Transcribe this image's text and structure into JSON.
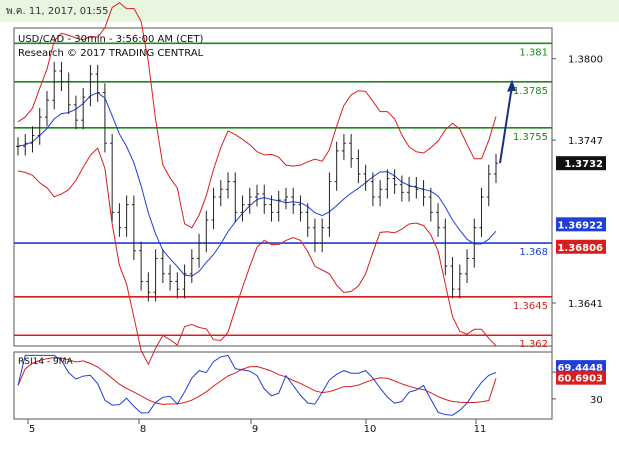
{
  "header": {
    "timestamp": "พ.ค. 11, 2017, 01:55"
  },
  "chart_data": {
    "type": "candlestick",
    "title": "USD/CAD - 30min - 3:56:00 AM (CET)",
    "subtitle": "Research © 2017 TRADING CENTRAL",
    "price_range": [
      1.3613,
      1.382
    ],
    "price_axis_ticks": [
      "1.3800",
      "1.3747",
      "1.3641"
    ],
    "x_ticks": [
      "5",
      "8",
      "9",
      "10",
      "11"
    ],
    "levels": [
      {
        "label": "1.381",
        "value": 1.381,
        "color": "#1a8a1a"
      },
      {
        "label": "1.3785",
        "value": 1.3785,
        "color": "#1a8a1a"
      },
      {
        "label": "1.3755",
        "value": 1.3755,
        "color": "#1a8a1a"
      },
      {
        "label": "1.368",
        "value": 1.368,
        "color": "#1f3fd8"
      },
      {
        "label": "1.3645",
        "value": 1.3645,
        "color": "#d81f1f"
      },
      {
        "label": "1.362",
        "value": 1.362,
        "color": "#d81f1f"
      }
    ],
    "current_price": {
      "label": "1.3732",
      "value": 1.3732
    },
    "ma_value": {
      "label": "1.36922",
      "value": 1.36922,
      "color": "#1f3fd8"
    },
    "bb_value": {
      "label": "1.36806",
      "value": 1.36806,
      "color": "#d81f1f"
    },
    "close": [
      1.3743,
      1.3745,
      1.375,
      1.3762,
      1.3773,
      1.3792,
      1.3785,
      1.377,
      1.376,
      1.3775,
      1.379,
      1.3778,
      1.3745,
      1.37,
      1.369,
      1.3705,
      1.3675,
      1.3655,
      1.3648,
      1.367,
      1.366,
      1.3655,
      1.365,
      1.366,
      1.367,
      1.368,
      1.3695,
      1.371,
      1.3715,
      1.372,
      1.37,
      1.3705,
      1.371,
      1.3712,
      1.3705,
      1.37,
      1.3708,
      1.371,
      1.3705,
      1.37,
      1.369,
      1.368,
      1.369,
      1.372,
      1.374,
      1.3745,
      1.3735,
      1.3725,
      1.372,
      1.371,
      1.3715,
      1.3722,
      1.3718,
      1.3713,
      1.3717,
      1.3715,
      1.371,
      1.37,
      1.369,
      1.3665,
      1.365,
      1.366,
      1.367,
      1.369,
      1.371,
      1.3725,
      1.3732
    ],
    "rsi": {
      "label": "RSI14 - 9MA",
      "value_label": "69.4448",
      "ma_label": "60.6903",
      "value": 69.4448,
      "ma": 60.6903,
      "ticks": [
        "70",
        "30"
      ],
      "color": "#1f3fd8",
      "ma_color": "#d81f1f"
    },
    "forecast_arrow": {
      "from": 1.3732,
      "to": 1.3785,
      "color": "#1b2f8a"
    }
  }
}
